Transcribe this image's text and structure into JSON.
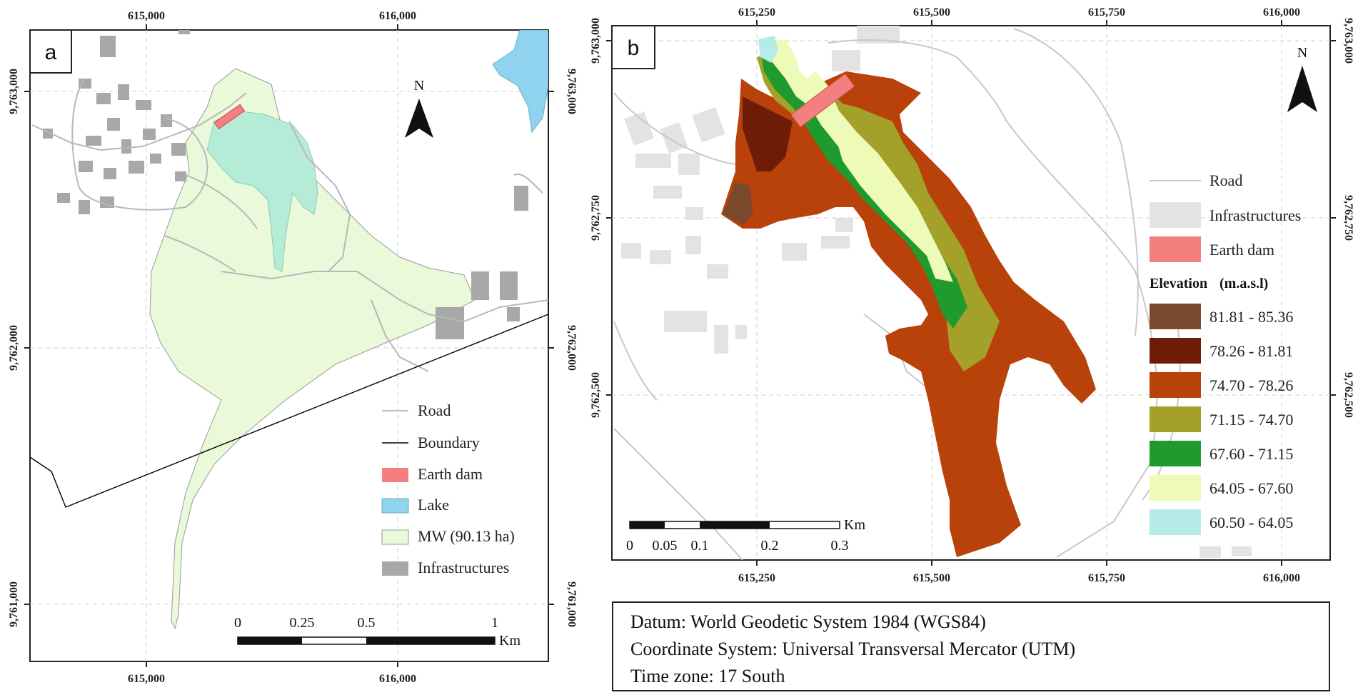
{
  "panel_a": {
    "label": "a",
    "x_ticks": [
      "615,000",
      "616,000"
    ],
    "y_ticks": [
      "9,763,000",
      "9,762,000",
      "9,761,000"
    ],
    "north": "N",
    "legend": [
      {
        "label": "Road",
        "symbol": "line",
        "color": "#bdbdbd"
      },
      {
        "label": "Boundary",
        "symbol": "line",
        "color": "#000000"
      },
      {
        "label": "Earth dam",
        "symbol": "box",
        "color": "#f47f7f"
      },
      {
        "label": "Lake",
        "symbol": "box",
        "color": "#8fd3ee"
      },
      {
        "label": "MW (90.13 ha)",
        "symbol": "box",
        "color": "#e9f9da"
      },
      {
        "label": "Infrastructures",
        "symbol": "box",
        "color": "#a8a8a8"
      }
    ],
    "scale": {
      "labels": [
        "0",
        "0.25",
        "0.5",
        "1"
      ],
      "unit": "Km"
    }
  },
  "panel_b": {
    "label": "b",
    "x_ticks": [
      "615,250",
      "615,500",
      "615,750",
      "616,000"
    ],
    "y_ticks": [
      "9,763,000",
      "9,762,750",
      "9,762,500"
    ],
    "north": "N",
    "legend": [
      {
        "label": "Road",
        "symbol": "line",
        "color": "#c8c8c8"
      },
      {
        "label": "Infrastructures",
        "symbol": "box",
        "color": "#e3e3e3"
      },
      {
        "label": "Earth dam",
        "symbol": "box",
        "color": "#f47f7f"
      }
    ],
    "elevation_title": "Elevation",
    "elevation_unit": "(m.a.s.l)",
    "elevation_classes": [
      {
        "label": "81.81 - 85.36",
        "color": "#7b4a2e"
      },
      {
        "label": "78.26 - 81.81",
        "color": "#6e1c08"
      },
      {
        "label": "74.70 - 78.26",
        "color": "#b9420a"
      },
      {
        "label": "71.15 - 74.70",
        "color": "#a3a12a"
      },
      {
        "label": "67.60 - 71.15",
        "color": "#1f9a2c"
      },
      {
        "label": "64.05 - 67.60",
        "color": "#eefab8"
      },
      {
        "label": "60.50 - 64.05",
        "color": "#b5ecea"
      }
    ],
    "scale": {
      "labels": [
        "0",
        "0.05",
        "0.1",
        "0.2",
        "0.3"
      ],
      "unit": "Km"
    }
  },
  "info_box": {
    "datum": "Datum: World Geodetic System 1984 (WGS84)",
    "coordinate_system": "Coordinate System: Universal Transversal Mercator (UTM)",
    "time_zone": "Time zone: 17 South"
  }
}
